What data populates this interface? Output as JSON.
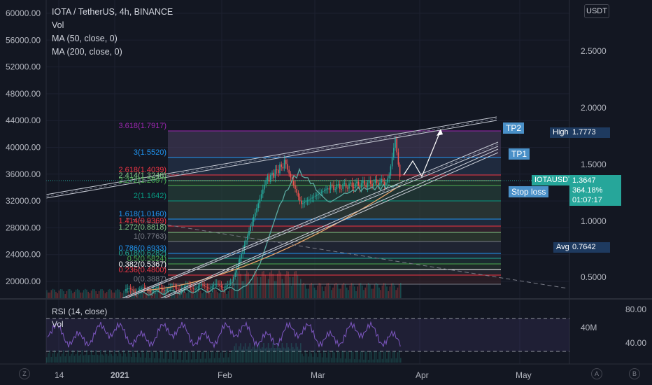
{
  "legend": {
    "symbol": "IOTA / TetherUS, 4h, BINANCE",
    "vol": "Vol",
    "ma50": "MA (50, close, 0)",
    "ma200": "MA (200, close, 0)"
  },
  "currency_button": "USDT",
  "left_axis_ticks": [
    "60000.00",
    "56000.00",
    "52000.00",
    "48000.00",
    "44000.00",
    "40000.00",
    "36000.00",
    "32000.00",
    "28000.00",
    "24000.00",
    "20000.00"
  ],
  "right_axis_ticks": [
    "2.5000",
    "2.0000",
    "1.5000",
    "1.0000",
    "0.5000"
  ],
  "date_axis": [
    "14",
    "2021",
    "Feb",
    "Mar",
    "Apr",
    "May"
  ],
  "fib_levels": [
    {
      "label": "3.618(1.7917)",
      "color": "#9c27b0"
    },
    {
      "label": "3(1.5520)",
      "color": "#2196f3"
    },
    {
      "label": "2.618(1.4039)",
      "color": "#f23645"
    },
    {
      "label": "2.414(1.3248)",
      "color": "#81c784"
    },
    {
      "label": "2.272(1.2697)",
      "color": "#4caf50"
    },
    {
      "label": "2(1.1642)",
      "color": "#089981"
    },
    {
      "label": "1.618(1.0160)",
      "color": "#2196f3"
    },
    {
      "label": "1.414(0.9369)",
      "color": "#f23645"
    },
    {
      "label": "1.272(0.8818)",
      "color": "#81c784"
    },
    {
      "label": "1(0.7763)",
      "color": "#787b86"
    },
    {
      "label": "0.786(0.6933)",
      "color": "#2196f3"
    },
    {
      "label": "0.618(0.6282)",
      "color": "#22ab94"
    },
    {
      "label": "0.5(0.5824)",
      "color": "#4caf50"
    },
    {
      "label": "0.382(0.5367)",
      "color": "#ffffff"
    },
    {
      "label": "0.236(0.4800)",
      "color": "#f23645"
    },
    {
      "label": "0(0.3887)",
      "color": "#787b86"
    }
  ],
  "targets": {
    "tp2": "TP2",
    "tp1": "TP1",
    "stop_loss": "Stop loss"
  },
  "price_tags": {
    "high_label": "High",
    "high_value": "1.7773",
    "symbol": "IOTAUSDT",
    "last": "1.3647",
    "change": "364.18%",
    "countdown": "01:07:17",
    "avg_label": "Avg",
    "avg_value": "0.7642"
  },
  "rsi": {
    "title": "RSI (14, close)",
    "vol": "Vol",
    "ticks": [
      "80.00",
      "40.00"
    ],
    "vol_tick": "40M"
  },
  "corners": {
    "z": "Z",
    "a": "A",
    "b": "B"
  },
  "colors": {
    "bg": "#131722",
    "up": "#26a69a",
    "down": "#ef5350",
    "ma50": "#5ba9a0",
    "ma200": "#e8a46b",
    "rsi": "#7e57c2",
    "target": "#4a90c8"
  }
}
